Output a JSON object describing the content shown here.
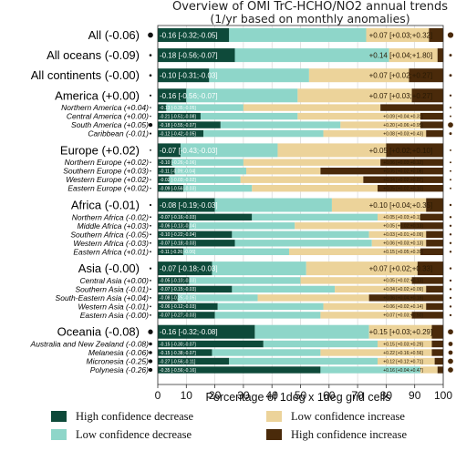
{
  "chart_data": {
    "type": "bar",
    "stacked": true,
    "title": "Overview of OMI TrC-HCHO/NO2 annual trends",
    "subtitle": "(1/yr based on monthly anomalies)",
    "xlabel": "Percentage of 1deg x 1deg grid cells",
    "xlim": [
      0,
      100
    ],
    "xticks": [
      "0",
      "10",
      "20",
      "30",
      "40",
      "50",
      "60",
      "70",
      "80",
      "90",
      "100"
    ],
    "grid": true,
    "legend_position": "bottom",
    "colors": {
      "high_dec": "#0e4a3a",
      "low_dec": "#8ed6c9",
      "low_inc": "#ecd39a",
      "high_inc": "#4a2a0a"
    },
    "series": [
      {
        "name": "High confidence decrease",
        "key": "high_dec"
      },
      {
        "name": "Low confidence decrease",
        "key": "low_dec"
      },
      {
        "name": "Low confidence increase",
        "key": "low_inc"
      },
      {
        "name": "High confidence increase",
        "key": "high_inc"
      }
    ],
    "rows": [
      {
        "label": "All (-0.06)",
        "level": "main",
        "values": [
          25,
          48,
          22,
          5
        ],
        "dot": 1.3,
        "ann_left": "-0.16 [-0.32;-0.05]",
        "ann_right": "+0.07 [+0.03;+0.32]"
      },
      {
        "label": "All oceans (-0.09)",
        "level": "main",
        "values": [
          27,
          54,
          17,
          2
        ],
        "dot": 0.6,
        "ann_left": "-0.18 [-0.56;-0.07]",
        "ann_right": "+0.14 [+0.04;+1.80]"
      },
      {
        "label": "All continents (-0.00)",
        "level": "main",
        "values": [
          18,
          35,
          35,
          12
        ],
        "dot": 0.6,
        "ann_left": "-0.10 [-0.31;-0.03]",
        "ann_right": "+0.07 [+0.02;+0.27]"
      },
      {
        "label": "America (+0.00)",
        "level": "main",
        "values": [
          10,
          39,
          40,
          11
        ],
        "dot": 0.5,
        "ann_left": "-0.16 [-0.56;-0.07]",
        "ann_right": "+0.07 [+0.03;+0.27]"
      },
      {
        "label": "Northern America (+0.04)",
        "level": "sub",
        "values": [
          3,
          27,
          48,
          22
        ],
        "dot": 0.4,
        "ann_left": "-0.13 [-0.35;-0.05]",
        "ann_right": ""
      },
      {
        "label": "Central America (+0.00)",
        "level": "sub",
        "values": [
          15,
          34,
          43,
          8
        ],
        "dot": 0.4,
        "ann_left": "-0.21 [-0.51;-0.08]",
        "ann_right": "+0.09 [+0.04;+0.31]"
      },
      {
        "label": "South America (+0.05)",
        "level": "sub",
        "values": [
          22,
          42,
          28,
          8
        ],
        "dot": 1.2,
        "ann_left": "-0.18 [-0.55;-0.07]",
        "ann_right": "+0.20 [+0.06;+0.95]"
      },
      {
        "label": "Caribbean (-0.01)",
        "level": "sub",
        "values": [
          16,
          42,
          36,
          6
        ],
        "dot": 0.6,
        "ann_left": "-0.12 [-0.42;-0.05]",
        "ann_right": "+0.08 [+0.03;+0.43]"
      },
      {
        "label": "Europe (+0.02)",
        "level": "main",
        "values": [
          8,
          34,
          38,
          20
        ],
        "dot": 0.4,
        "ann_left": "-0.07 [-0.43;-0.03]",
        "ann_right": "+0.05 [+0.02;+0.10]"
      },
      {
        "label": "Northern Europe (+0.02)",
        "level": "sub",
        "values": [
          5,
          25,
          48,
          22
        ],
        "dot": 0.4,
        "ann_left": "-0.10 [-0.26;-0.06]",
        "ann_right": "+0.06 [+0.03;+0.12]"
      },
      {
        "label": "Southern Europe (+0.03)",
        "level": "sub",
        "values": [
          6,
          25,
          26,
          43
        ],
        "dot": 0.4,
        "ann_left": "-0.11 [-0.09;-0.04]",
        "ann_right": "+0.05 [+0.02;+0.08]"
      },
      {
        "label": "Western Europe (+0.02)",
        "level": "sub",
        "values": [
          4,
          25,
          43,
          28
        ],
        "dot": 0.4,
        "ann_left": "-0.02 [-0.03;-0.02]",
        "ann_right": "+0.04 [+0.02;+0.07]"
      },
      {
        "label": "Eastern Europe (+0.02)",
        "level": "sub",
        "values": [
          9,
          24,
          44,
          23
        ],
        "dot": 0.4,
        "ann_left": "-0.09 [-0.56;-0.03]",
        "ann_right": "+0.05 [+0.02;+0.10]"
      },
      {
        "label": "Africa (-0.01)",
        "level": "main",
        "values": [
          20,
          41,
          33,
          6
        ],
        "dot": 0.5,
        "ann_left": "-0.08 [-0.19;-0.03]",
        "ann_right": "+0.10 [+0.04;+0.35]"
      },
      {
        "label": "Northern Africa (-0.02)",
        "level": "sub",
        "values": [
          33,
          44,
          15,
          8
        ],
        "dot": 0.5,
        "ann_left": "-0.07 [-0.16;-0.03]",
        "ann_right": "+0.05 [+0.03;+0.1]"
      },
      {
        "label": "Middle Africa (+0.03)",
        "level": "sub",
        "values": [
          11,
          37,
          37,
          15
        ],
        "dot": 0.5,
        "ann_left": "-0.06 [-0.13;-0.04]",
        "ann_right": "+0.05 [+0.02;+0.13]"
      },
      {
        "label": "Southern Africa (-0.05)",
        "level": "sub",
        "values": [
          26,
          48,
          20,
          6
        ],
        "dot": 0.5,
        "ann_left": "-0.10 [-0.22;-0.04]",
        "ann_right": "+0.03 [+0.01;+0.09]"
      },
      {
        "label": "Western Africa (-0.03)",
        "level": "sub",
        "values": [
          27,
          48,
          19,
          6
        ],
        "dot": 0.5,
        "ann_left": "-0.07 [-0.18;-0.03]",
        "ann_right": "+0.06 [+0.03;+0.13]"
      },
      {
        "label": "Eastern Africa (+0.01)",
        "level": "sub",
        "values": [
          9,
          37,
          46,
          8
        ],
        "dot": 0.5,
        "ann_left": "-0.11 [-0.26;-0.06]",
        "ann_right": "+0.15 [+0.05;+0.39]"
      },
      {
        "label": "Asia (-0.00)",
        "level": "main",
        "values": [
          19,
          33,
          39,
          9
        ],
        "dot": 0.5,
        "ann_left": "-0.07 [-0.18;-0.03]",
        "ann_right": "+0.07 [+0.02;+0.33]"
      },
      {
        "label": "Central Asia (+0.00)",
        "level": "sub",
        "values": [
          11,
          39,
          39,
          11
        ],
        "dot": 0.5,
        "ann_left": "-0.05 [-0.10;-0.03]",
        "ann_right": "+0.05 [+0.02;+0.13]"
      },
      {
        "label": "Southern Asia (-0.01)",
        "level": "sub",
        "values": [
          26,
          36,
          32,
          6
        ],
        "dot": 0.5,
        "ann_left": "-0.07 [-0.15;-0.03]",
        "ann_right": "+0.04 [+0.02;+0.09]"
      },
      {
        "label": "South-Eastern Asia (+0.04)",
        "level": "sub",
        "values": [
          7,
          28,
          39,
          26
        ],
        "dot": 0.5,
        "ann_left": "-0.08 [-0.25;-0.05]",
        "ann_right": "+0.06 [+0.04;+0.18]"
      },
      {
        "label": "Western Asia (-0.01)",
        "level": "sub",
        "values": [
          21,
          37,
          36,
          6
        ],
        "dot": 0.5,
        "ann_left": "-0.06 [-0.12;-0.03]",
        "ann_right": "+0.06 [+0.02;+0.14]"
      },
      {
        "label": "Eastern Asia (-0.00)",
        "level": "sub",
        "values": [
          20,
          37,
          32,
          11
        ],
        "dot": 0.5,
        "ann_left": "-0.07 [-0.27;-0.03]",
        "ann_right": "+0.07 [+0.03;+0.50]"
      },
      {
        "label": "Oceania (-0.08)",
        "level": "main",
        "values": [
          34,
          40,
          22,
          4
        ],
        "dot": 1.2,
        "ann_left": "-0.16 [-0.32;-0.08]",
        "ann_right": "+0.15 [+0.03;+0.29]"
      },
      {
        "label": "Australia and New Zealand (-0.08)",
        "level": "sub",
        "values": [
          37,
          40,
          19,
          4
        ],
        "dot": 1.0,
        "ann_left": "-0.15 [-0.30;-0.07]",
        "ann_right": "+0.15 [+0.03;+0.29]"
      },
      {
        "label": "Melanesia (-0.06)",
        "level": "sub",
        "values": [
          19,
          38,
          39,
          4
        ],
        "dot": 1.0,
        "ann_left": "-0.15 [-0.38;-0.07]",
        "ann_right": "+0.22 [+0.16;+0.56]"
      },
      {
        "label": "Micronesia (-0.25)",
        "level": "sub",
        "values": [
          25,
          52,
          20,
          3
        ],
        "dot": 1.2,
        "ann_left": "-0.27 [-0.56;-0.11]",
        "ann_right": "+0.12 [+0.12;+0.71]"
      },
      {
        "label": "Polynesia (-0.26)",
        "level": "sub",
        "values": [
          57,
          35,
          6,
          2
        ],
        "dot": 1.2,
        "ann_left": "-0.35 [-0.56;-0.16]",
        "ann_right": "+0.16 [+0.04;+0.47]"
      }
    ]
  }
}
